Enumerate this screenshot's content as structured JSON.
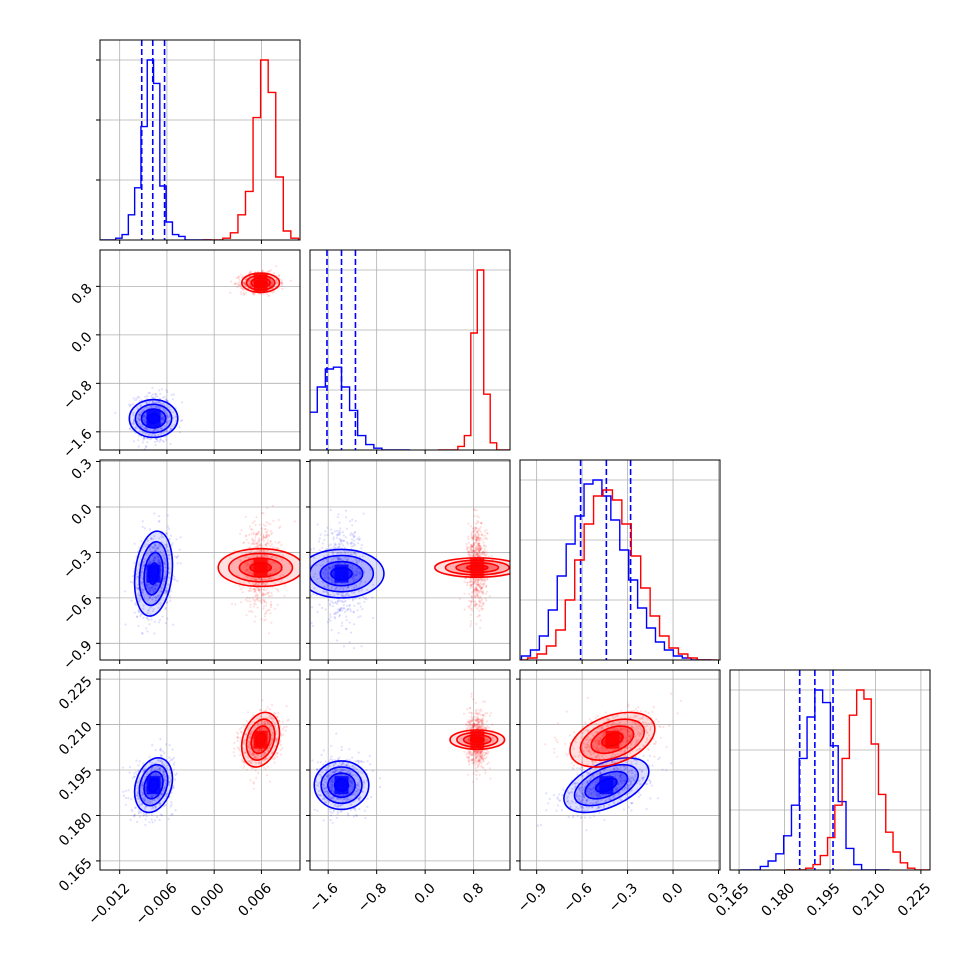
{
  "chart_data": {
    "type": "corner",
    "grid": true,
    "parameters": [
      {
        "ticks": [
          -0.012,
          -0.006,
          0.0,
          0.006
        ],
        "tick_labels": [
          "−0.012",
          "−0.006",
          "0.000",
          "0.006"
        ],
        "range": [
          -0.0145,
          0.0109
        ]
      },
      {
        "ticks": [
          -1.6,
          -0.8,
          0.0,
          0.8
        ],
        "tick_labels": [
          "−1.6",
          "−0.8",
          "0.0",
          "0.8"
        ],
        "range": [
          -1.9,
          1.4
        ]
      },
      {
        "ticks": [
          -0.9,
          -0.6,
          -0.3,
          0.0,
          0.3
        ],
        "tick_labels": [
          "−0.9",
          "−0.6",
          "−0.3",
          "0.0",
          "0.3"
        ],
        "range": [
          -1.01,
          0.31
        ]
      },
      {
        "ticks": [
          0.165,
          0.18,
          0.195,
          0.21,
          0.225
        ],
        "tick_labels": [
          "0.165",
          "0.180",
          "0.195",
          "0.210",
          "0.225"
        ],
        "range": [
          0.162,
          0.228
        ]
      }
    ],
    "series": [
      {
        "color": "#0000ff",
        "means": [
          -0.0077,
          -1.38,
          -0.44,
          0.19
        ],
        "sigmas": [
          0.0012,
          0.2,
          0.14,
          0.0045
        ],
        "quantiles": [
          [
            -0.0092,
            -0.0078,
            -0.0063
          ],
          [
            -1.62,
            -1.38,
            -1.15
          ],
          [
            -0.61,
            -0.44,
            -0.28
          ],
          [
            0.185,
            0.19,
            0.196
          ]
        ],
        "histograms": [
          [
            0.01,
            0.03,
            0.14,
            0.29,
            0.63,
            1.0,
            0.87,
            0.3,
            0.1,
            0.03,
            0.02,
            0.0
          ],
          [
            0.01,
            0.07,
            0.21,
            0.35,
            0.45,
            0.46,
            0.35,
            0.22,
            0.08,
            0.03,
            0.01,
            0.0
          ],
          [
            0.02,
            0.05,
            0.12,
            0.25,
            0.42,
            0.58,
            0.72,
            0.88,
            0.9,
            0.82,
            0.7,
            0.55,
            0.4,
            0.26,
            0.16,
            0.09,
            0.05,
            0.02,
            0.01
          ],
          [
            0.02,
            0.05,
            0.09,
            0.19,
            0.36,
            0.62,
            0.85,
            1.0,
            0.93,
            0.69,
            0.38,
            0.12,
            0.03,
            0.0
          ]
        ]
      },
      {
        "color": "#ff0000",
        "means": [
          0.0059,
          0.86,
          -0.4,
          0.205
        ],
        "sigmas": [
          0.0012,
          0.08,
          0.14,
          0.0045
        ],
        "histograms": [
          [
            0.01,
            0.04,
            0.14,
            0.27,
            0.68,
            1.0,
            0.82,
            0.35,
            0.05,
            0.01
          ],
          [
            0.02,
            0.08,
            0.65,
            1.0,
            0.31,
            0.04
          ],
          [
            0.01,
            0.03,
            0.07,
            0.15,
            0.3,
            0.5,
            0.68,
            0.82,
            0.85,
            0.8,
            0.68,
            0.52,
            0.36,
            0.22,
            0.12,
            0.06,
            0.03,
            0.01
          ],
          [
            0.01,
            0.03,
            0.08,
            0.18,
            0.36,
            0.62,
            0.86,
            1.0,
            0.95,
            0.7,
            0.42,
            0.21,
            0.1,
            0.04,
            0.01
          ]
        ]
      }
    ],
    "correlations": {
      "1-0": [
        0.0,
        0.0
      ],
      "2-0": [
        0.2,
        0.0
      ],
      "2-1": [
        0.0,
        0.0
      ],
      "3-0": [
        0.25,
        0.25
      ],
      "3-1": [
        0.0,
        0.0
      ],
      "3-2": [
        0.5,
        0.4
      ]
    }
  }
}
